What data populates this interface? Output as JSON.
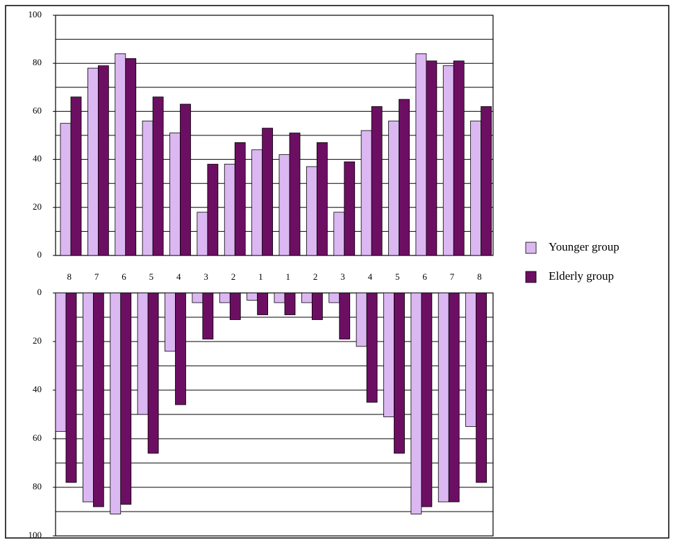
{
  "chart_data": [
    {
      "type": "bar",
      "categories": [
        "8",
        "7",
        "6",
        "5",
        "4",
        "3",
        "2",
        "1",
        "1",
        "2",
        "3",
        "4",
        "5",
        "6",
        "7",
        "8"
      ],
      "series": [
        {
          "name": "Younger group",
          "color": "#dcb8f2",
          "values": [
            55,
            78,
            84,
            56,
            51,
            18,
            38,
            44,
            42,
            37,
            18,
            52,
            56,
            84,
            79,
            56
          ]
        },
        {
          "name": "Elderly group",
          "color": "#6c0f62",
          "values": [
            66,
            79,
            82,
            66,
            63,
            38,
            47,
            53,
            51,
            47,
            39,
            62,
            65,
            81,
            81,
            62
          ]
        }
      ],
      "ylim": [
        0,
        100
      ],
      "yticks": [
        0,
        20,
        40,
        60,
        80,
        100
      ],
      "grid": [
        10,
        20,
        30,
        40,
        50,
        60,
        70,
        80,
        90
      ],
      "legend": "right"
    },
    {
      "type": "bar",
      "series": [
        {
          "color": "#dcb8f2",
          "values": [
            57,
            86,
            91,
            50,
            24,
            4,
            4,
            3,
            4,
            4,
            4,
            22,
            51,
            91,
            86,
            55
          ]
        },
        {
          "color": "#6c0f62",
          "values": [
            78,
            88,
            87,
            66,
            46,
            19,
            11,
            9,
            9,
            11,
            19,
            45,
            66,
            88,
            86,
            78
          ]
        }
      ],
      "ylim": [
        0,
        100
      ],
      "inverted": true,
      "yticks": [
        0,
        20,
        40,
        60,
        80,
        100
      ],
      "grid": [
        10,
        20,
        30,
        40,
        50,
        60,
        70,
        80,
        90
      ]
    }
  ]
}
